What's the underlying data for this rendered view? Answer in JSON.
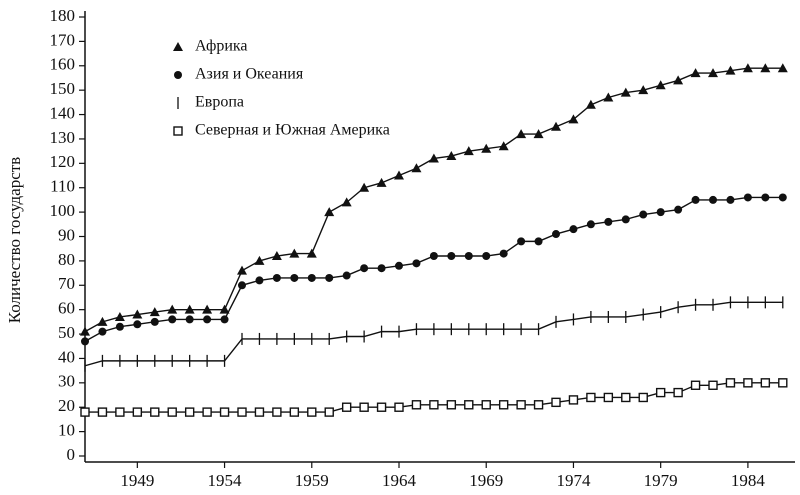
{
  "chart_data": {
    "type": "line",
    "y_label": "Количество государств",
    "x": [
      1946,
      1947,
      1948,
      1949,
      1950,
      1951,
      1952,
      1953,
      1954,
      1955,
      1956,
      1957,
      1958,
      1959,
      1960,
      1961,
      1962,
      1963,
      1964,
      1965,
      1966,
      1967,
      1968,
      1969,
      1970,
      1971,
      1972,
      1973,
      1974,
      1975,
      1976,
      1977,
      1978,
      1979,
      1980,
      1981,
      1982,
      1983,
      1984,
      1985,
      1986
    ],
    "series": [
      {
        "name": "Африка",
        "color": "#111111",
        "marker": "triangle",
        "values": [
          51,
          55,
          57,
          58,
          59,
          60,
          60,
          60,
          60,
          76,
          80,
          82,
          83,
          83,
          100,
          104,
          110,
          112,
          115,
          118,
          122,
          123,
          125,
          126,
          127,
          132,
          132,
          135,
          138,
          144,
          147,
          149,
          150,
          152,
          154,
          157,
          157,
          158,
          159,
          159,
          159
        ]
      },
      {
        "name": "Азия и Океания",
        "color": "#111111",
        "marker": "circle",
        "values": [
          47,
          51,
          53,
          54,
          55,
          56,
          56,
          56,
          56,
          70,
          72,
          73,
          73,
          73,
          73,
          74,
          77,
          77,
          78,
          79,
          82,
          82,
          82,
          82,
          83,
          88,
          88,
          91,
          93,
          95,
          96,
          97,
          99,
          100,
          101,
          105,
          105,
          105,
          106,
          106,
          106
        ]
      },
      {
        "name": "Европа",
        "color": "#111111",
        "marker": "tick",
        "values": [
          37,
          39,
          39,
          39,
          39,
          39,
          39,
          39,
          39,
          48,
          48,
          48,
          48,
          48,
          48,
          49,
          49,
          51,
          51,
          52,
          52,
          52,
          52,
          52,
          52,
          52,
          52,
          55,
          56,
          57,
          57,
          57,
          58,
          59,
          61,
          62,
          62,
          63,
          63,
          63,
          63
        ]
      },
      {
        "name": "Северная и Южная Америка",
        "color": "#111111",
        "marker": "square",
        "values": [
          18,
          18,
          18,
          18,
          18,
          18,
          18,
          18,
          18,
          18,
          18,
          18,
          18,
          18,
          18,
          20,
          20,
          20,
          20,
          21,
          21,
          21,
          21,
          21,
          21,
          21,
          21,
          22,
          23,
          24,
          24,
          24,
          24,
          26,
          26,
          29,
          29,
          30,
          30,
          30,
          30
        ]
      }
    ],
    "xlim": [
      1946,
      1986.7
    ],
    "xticks": [
      1949,
      1954,
      1959,
      1964,
      1969,
      1974,
      1979,
      1984
    ],
    "ylim": [
      0,
      180
    ],
    "yticks": [
      0,
      10,
      20,
      30,
      40,
      50,
      60,
      70,
      80,
      90,
      100,
      110,
      120,
      130,
      140,
      150,
      160,
      170,
      180
    ],
    "grid": false,
    "legend": "top-left"
  }
}
